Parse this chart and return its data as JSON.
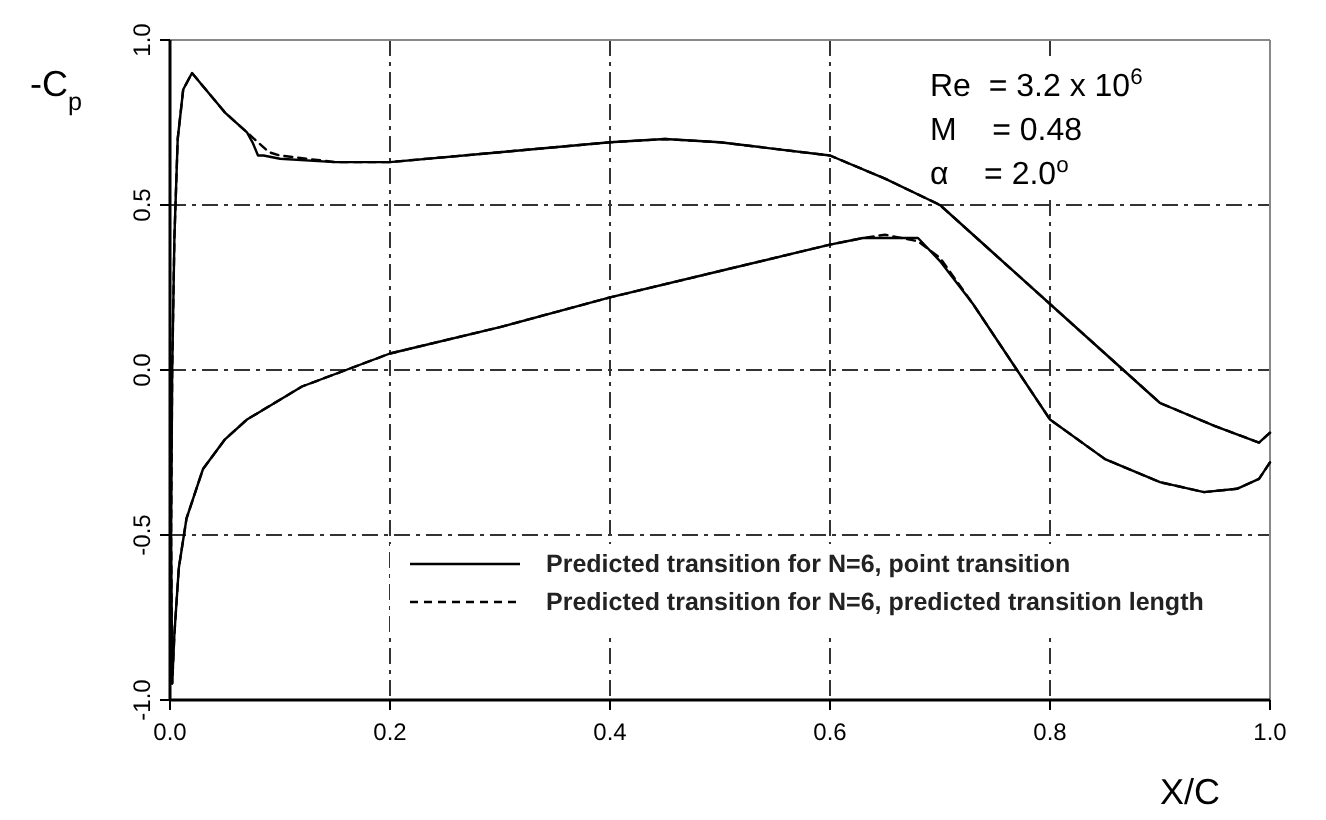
{
  "chart_data": {
    "type": "line",
    "xlabel": "X/C",
    "ylabel": "-C$_{p}$",
    "xlim": [
      0,
      1
    ],
    "ylim": [
      -1,
      1
    ],
    "xticks": [
      {
        "value": 0,
        "label": "0.0"
      },
      0.2,
      0.4,
      0.6,
      0.8,
      {
        "value": 1,
        "label": "1.0"
      }
    ],
    "yticks": [
      {
        "value": -1,
        "label": "-1.0"
      },
      -0.5,
      {
        "value": 0,
        "label": "0.0"
      },
      0.5,
      {
        "value": 1,
        "label": "1.0"
      }
    ],
    "grid": true,
    "legend": "bottom",
    "annotations": [
      "Re  = 3.2 x 10$^{6}$",
      "M    = 0.48",
      "α    = 2.0$^{o}$"
    ],
    "series": [
      {
        "name": "Predicted transition for N=6, point transition",
        "color": "#000000",
        "line_style": "solid",
        "x": [
          1.0,
          0.99,
          0.95,
          0.9,
          0.85,
          0.8,
          0.75,
          0.7,
          0.65,
          0.6,
          0.5,
          0.45,
          0.4,
          0.3,
          0.2,
          0.15,
          0.1,
          0.085,
          0.08,
          0.075,
          0.07,
          0.05,
          0.03,
          0.02,
          0.012,
          0.007,
          0.004,
          0.002,
          0.001,
          0.002,
          0.004,
          0.008,
          0.015,
          0.03,
          0.05,
          0.07,
          0.1,
          0.12,
          0.16,
          0.2,
          0.3,
          0.4,
          0.5,
          0.6,
          0.63,
          0.65,
          0.68,
          0.7,
          0.73,
          0.77,
          0.8,
          0.85,
          0.9,
          0.94,
          0.97,
          0.99,
          1.0
        ],
        "values": [
          -0.19,
          -0.22,
          -0.17,
          -0.1,
          0.05,
          0.2,
          0.35,
          0.5,
          0.58,
          0.65,
          0.69,
          0.7,
          0.69,
          0.66,
          0.63,
          0.63,
          0.64,
          0.65,
          0.65,
          0.69,
          0.72,
          0.78,
          0.86,
          0.9,
          0.85,
          0.7,
          0.4,
          0.0,
          -0.5,
          -0.95,
          -0.8,
          -0.6,
          -0.45,
          -0.3,
          -0.21,
          -0.15,
          -0.09,
          -0.05,
          0.0,
          0.05,
          0.13,
          0.22,
          0.3,
          0.38,
          0.4,
          0.4,
          0.4,
          0.33,
          0.2,
          0.0,
          -0.15,
          -0.27,
          -0.34,
          -0.37,
          -0.36,
          -0.33,
          -0.28
        ]
      },
      {
        "name": "Predicted transition for N=6, predicted transition length",
        "color": "#000000",
        "line_style": "dashed",
        "x": [
          1.0,
          0.99,
          0.95,
          0.9,
          0.85,
          0.8,
          0.75,
          0.7,
          0.65,
          0.6,
          0.5,
          0.45,
          0.4,
          0.3,
          0.2,
          0.15,
          0.1,
          0.09,
          0.08,
          0.07,
          0.05,
          0.03,
          0.02,
          0.012,
          0.007,
          0.004,
          0.002,
          0.001,
          0.002,
          0.004,
          0.008,
          0.015,
          0.03,
          0.05,
          0.07,
          0.1,
          0.12,
          0.16,
          0.2,
          0.3,
          0.4,
          0.5,
          0.6,
          0.63,
          0.65,
          0.68,
          0.7,
          0.73,
          0.77,
          0.8,
          0.85,
          0.9,
          0.94,
          0.97,
          0.99,
          1.0
        ],
        "values": [
          -0.19,
          -0.22,
          -0.17,
          -0.1,
          0.05,
          0.2,
          0.35,
          0.5,
          0.58,
          0.65,
          0.69,
          0.7,
          0.69,
          0.66,
          0.63,
          0.63,
          0.65,
          0.66,
          0.69,
          0.72,
          0.78,
          0.86,
          0.9,
          0.85,
          0.7,
          0.4,
          0.0,
          -0.5,
          -0.95,
          -0.8,
          -0.6,
          -0.45,
          -0.3,
          -0.21,
          -0.15,
          -0.09,
          -0.05,
          0.0,
          0.05,
          0.13,
          0.22,
          0.3,
          0.38,
          0.4,
          0.41,
          0.39,
          0.34,
          0.2,
          0.0,
          -0.15,
          -0.27,
          -0.34,
          -0.37,
          -0.36,
          -0.33,
          -0.28
        ]
      }
    ]
  }
}
